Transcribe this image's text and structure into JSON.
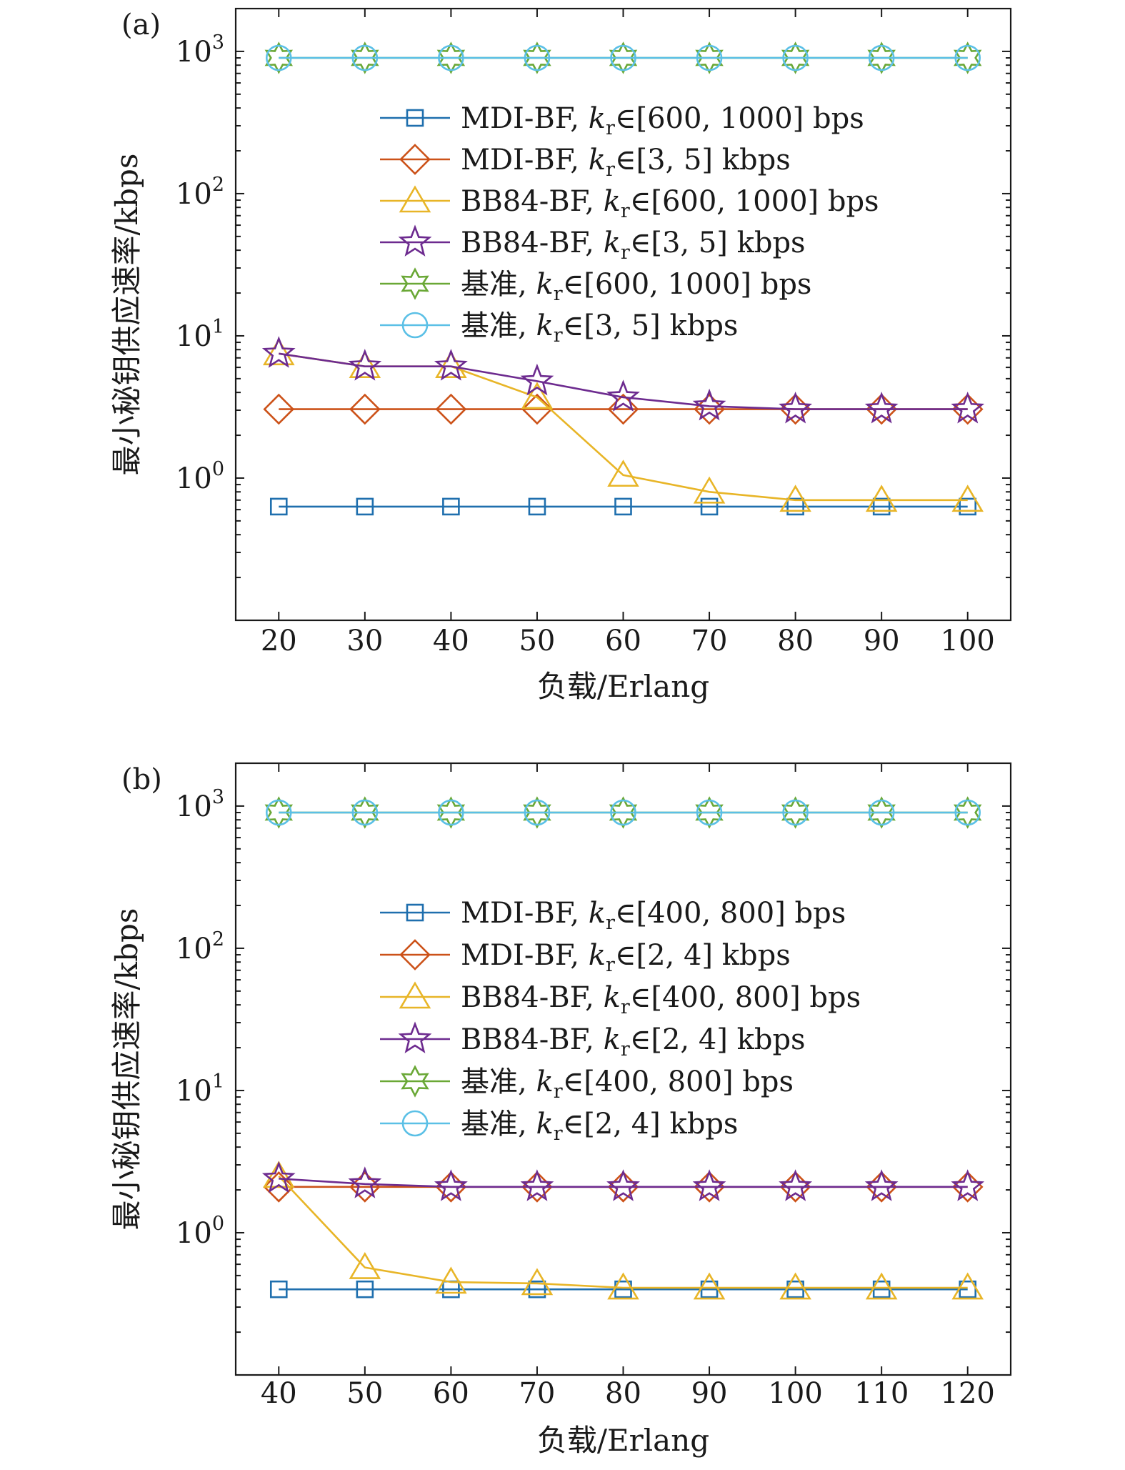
{
  "colors": {
    "mdi": "#1f6fae",
    "mdi2": "#cc5219",
    "bb84": "#e8b527",
    "bb84s": "#6d2b8f",
    "base": "#6aa836",
    "base2": "#5bc0e6",
    "axis": "#1a1a1a"
  },
  "chart_data": [
    {
      "type": "line",
      "panel_label": "(a)",
      "ylabel": "最小秘钥供应速率/kbps",
      "xlabel": "负载/Erlang",
      "yscale": "log",
      "xlim": [
        15,
        105
      ],
      "ylim": [
        0.1,
        2000
      ],
      "x": [
        20,
        30,
        40,
        50,
        60,
        70,
        80,
        90,
        100
      ],
      "xticks": [
        "20",
        "30",
        "40",
        "50",
        "60",
        "70",
        "80",
        "90",
        "100"
      ],
      "yticks": [
        {
          "base": "10",
          "exp": "0",
          "value": 1
        },
        {
          "base": "10",
          "exp": "1",
          "value": 10
        },
        {
          "base": "10",
          "exp": "2",
          "value": 100
        },
        {
          "base": "10",
          "exp": "3",
          "value": 1000
        }
      ],
      "legend_position": "upper-right",
      "series": [
        {
          "name": "MDI-BF, k_r∈[600, 1000] bps",
          "lead": "MDI-BF, ",
          "sym": "k",
          "sub": "r",
          "rest": "∈[600, 1000] bps",
          "marker": "square",
          "color_key": "mdi",
          "values": [
            0.63,
            0.63,
            0.63,
            0.63,
            0.63,
            0.63,
            0.63,
            0.63,
            0.63
          ]
        },
        {
          "name": "MDI-BF, k_r∈[3, 5] kbps",
          "lead": "MDI-BF, ",
          "sym": "k",
          "sub": "r",
          "rest": "∈[3, 5] kbps",
          "marker": "diamond",
          "color_key": "mdi2",
          "values": [
            3.05,
            3.05,
            3.05,
            3.05,
            3.05,
            3.05,
            3.05,
            3.05,
            3.05
          ]
        },
        {
          "name": "BB84-BF, k_r∈[600, 1000] bps",
          "lead": "BB84-BF, ",
          "sym": "k",
          "sub": "r",
          "rest": "∈[600, 1000] bps",
          "marker": "triangle",
          "color_key": "bb84",
          "values": [
            7.5,
            6.1,
            6.1,
            3.7,
            1.05,
            0.8,
            0.7,
            0.7,
            0.7
          ]
        },
        {
          "name": "BB84-BF, k_r∈[3, 5] kbps",
          "lead": "BB84-BF, ",
          "sym": "k",
          "sub": "r",
          "rest": "∈[3, 5] kbps",
          "marker": "star",
          "color_key": "bb84s",
          "values": [
            7.5,
            6.1,
            6.1,
            4.8,
            3.7,
            3.2,
            3.05,
            3.05,
            3.05
          ]
        },
        {
          "name": "基准, k_r∈[600, 1000] bps",
          "lead": "基准, ",
          "sym": "k",
          "sub": "r",
          "rest": "∈[600, 1000] bps",
          "marker": "hexstar",
          "color_key": "base",
          "values": [
            900,
            900,
            900,
            900,
            900,
            900,
            900,
            900,
            900
          ]
        },
        {
          "name": "基准, k_r∈[3, 5] kbps",
          "lead": "基准, ",
          "sym": "k",
          "sub": "r",
          "rest": "∈[3, 5] kbps",
          "marker": "circle",
          "color_key": "base2",
          "values": [
            900,
            900,
            900,
            900,
            900,
            900,
            900,
            900,
            900
          ]
        }
      ]
    },
    {
      "type": "line",
      "panel_label": "(b)",
      "ylabel": "最小秘钥供应速率/kbps",
      "xlabel": "负载/Erlang",
      "yscale": "log",
      "xlim": [
        35,
        125
      ],
      "ylim": [
        0.1,
        2000
      ],
      "x": [
        40,
        50,
        60,
        70,
        80,
        90,
        100,
        110,
        120
      ],
      "xticks": [
        "40",
        "50",
        "60",
        "70",
        "80",
        "90",
        "100",
        "110",
        "120"
      ],
      "yticks": [
        {
          "base": "10",
          "exp": "0",
          "value": 1
        },
        {
          "base": "10",
          "exp": "1",
          "value": 10
        },
        {
          "base": "10",
          "exp": "2",
          "value": 100
        },
        {
          "base": "10",
          "exp": "3",
          "value": 1000
        }
      ],
      "legend_position": "upper-right",
      "series": [
        {
          "name": "MDI-BF, k_r∈[400, 800] bps",
          "lead": "MDI-BF, ",
          "sym": "k",
          "sub": "r",
          "rest": "∈[400, 800] bps",
          "marker": "square",
          "color_key": "mdi",
          "values": [
            0.4,
            0.4,
            0.4,
            0.4,
            0.4,
            0.4,
            0.4,
            0.4,
            0.4
          ]
        },
        {
          "name": "MDI-BF, k_r∈[2, 4] kbps",
          "lead": "MDI-BF, ",
          "sym": "k",
          "sub": "r",
          "rest": "∈[2, 4] kbps",
          "marker": "diamond",
          "color_key": "mdi2",
          "values": [
            2.1,
            2.1,
            2.1,
            2.1,
            2.1,
            2.1,
            2.1,
            2.1,
            2.1
          ]
        },
        {
          "name": "BB84-BF, k_r∈[400, 800] bps",
          "lead": "BB84-BF, ",
          "sym": "k",
          "sub": "r",
          "rest": "∈[400, 800] bps",
          "marker": "triangle",
          "color_key": "bb84",
          "values": [
            2.5,
            0.57,
            0.45,
            0.44,
            0.41,
            0.41,
            0.41,
            0.41,
            0.41
          ]
        },
        {
          "name": "BB84-BF, k_r∈[2, 4] kbps",
          "lead": "BB84-BF, ",
          "sym": "k",
          "sub": "r",
          "rest": "∈[2, 4] kbps",
          "marker": "star",
          "color_key": "bb84s",
          "values": [
            2.4,
            2.2,
            2.1,
            2.1,
            2.1,
            2.1,
            2.1,
            2.1,
            2.1
          ]
        },
        {
          "name": "基准, k_r∈[400, 800] bps",
          "lead": "基准, ",
          "sym": "k",
          "sub": "r",
          "rest": "∈[400, 800] bps",
          "marker": "hexstar",
          "color_key": "base",
          "values": [
            900,
            900,
            900,
            900,
            900,
            900,
            900,
            900,
            900
          ]
        },
        {
          "name": "基准, k_r∈[2, 4] kbps",
          "lead": "基准, ",
          "sym": "k",
          "sub": "r",
          "rest": "∈[2, 4] kbps",
          "marker": "circle",
          "color_key": "base2",
          "values": [
            900,
            900,
            900,
            900,
            900,
            900,
            900,
            900,
            900
          ]
        }
      ]
    }
  ]
}
